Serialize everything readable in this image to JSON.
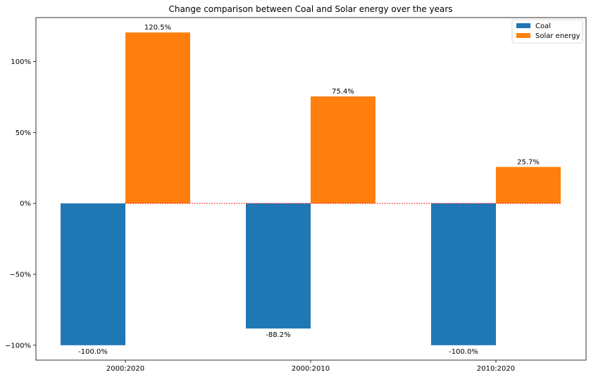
{
  "chart_data": {
    "type": "bar",
    "title": "Change comparison between Coal and Solar energy over the years",
    "categories": [
      "2000:2020",
      "2000:2010",
      "2010:2020"
    ],
    "series": [
      {
        "name": "Coal",
        "values": [
          -100.0,
          -88.2,
          -100.0
        ],
        "color": "#1f77b4"
      },
      {
        "name": "Solar energy",
        "values": [
          120.5,
          75.4,
          25.7
        ],
        "color": "#ff7f0e"
      }
    ],
    "data_labels": [
      [
        "-100.0%",
        "-88.2%",
        "-100.0%"
      ],
      [
        "120.5%",
        "75.4%",
        "25.7%"
      ]
    ],
    "ylim": [
      -110.5,
      131.0
    ],
    "yticks": [
      -100,
      -50,
      0,
      50,
      100
    ],
    "ytick_labels": [
      "−100%",
      "−50%",
      "0%",
      "50%",
      "100%"
    ],
    "reference_line": {
      "y": 0,
      "style": "dotted",
      "color": "#ff0000"
    },
    "grid": false,
    "legend": {
      "placement": "top-right"
    }
  }
}
